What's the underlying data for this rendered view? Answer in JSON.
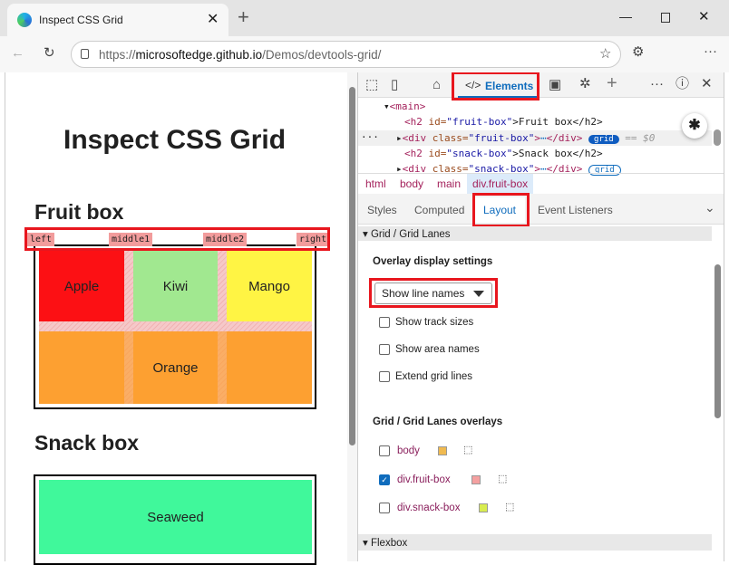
{
  "browser": {
    "tab_title": "Inspect CSS Grid",
    "url_prefix": "https://",
    "url_host": "microsoftedge.github.io",
    "url_path": "/Demos/devtools-grid/"
  },
  "page": {
    "title": "Inspect CSS Grid",
    "fruit_heading": "Fruit box",
    "snack_heading": "Snack box",
    "line_names": [
      "left",
      "middle1",
      "middle2",
      "right"
    ],
    "fruits": [
      {
        "name": "Apple",
        "color": "#fc1014"
      },
      {
        "name": "Kiwi",
        "color": "#a1e890"
      },
      {
        "name": "Mango",
        "color": "#fff444"
      },
      {
        "name": "Orange",
        "color": "#fda031"
      }
    ],
    "snack": {
      "name": "Seaweed",
      "color": "#40f89b"
    }
  },
  "devtools": {
    "tabs": {
      "elements": "Elements"
    },
    "dom": {
      "l1": "<main>",
      "l2_open": "<h2 ",
      "l2_attr": "id=",
      "l2_val": "\"fruit-box\"",
      "l2_text": ">Fruit box</h2>",
      "l3_open": "<div ",
      "l3_attr": "class=",
      "l3_val": "\"fruit-box\"",
      "l3_close": "</div>",
      "l3_badge": "grid",
      "l3_eq": "== $0",
      "l4_val": "\"snack-box\"",
      "l4_text": ">Snack box</h2>",
      "l5_val": "\"snack-box\"",
      "l5_badge": "grid"
    },
    "breadcrumbs": [
      "html",
      "body",
      "main",
      "div.fruit-box"
    ],
    "panel_tabs": [
      "Styles",
      "Computed",
      "Layout",
      "Event Listeners"
    ],
    "active_panel_tab": "Layout",
    "grid_section": "Grid / Grid Lanes",
    "overlay_settings": "Overlay display settings",
    "select_value": "Show line names",
    "checkboxes": [
      {
        "label": "Show track sizes",
        "checked": false
      },
      {
        "label": "Show area names",
        "checked": false
      },
      {
        "label": "Extend grid lines",
        "checked": false
      }
    ],
    "overlays_title": "Grid / Grid Lanes overlays",
    "overlays": [
      {
        "label": "body",
        "checked": false,
        "color": "#f0ba50"
      },
      {
        "label": "div.fruit-box",
        "checked": true,
        "color": "#f4a0a0"
      },
      {
        "label": "div.snack-box",
        "checked": false,
        "color": "#d8ec50"
      }
    ],
    "flexbox_section": "Flexbox"
  }
}
